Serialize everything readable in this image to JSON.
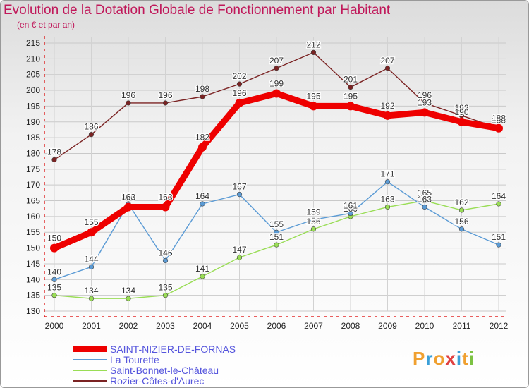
{
  "title": "Evolution de la Dotation Globale de Fonctionnement par Habitant",
  "subtitle": "(en € et par an)",
  "watermark": "Proxiti",
  "chart_data": {
    "type": "line",
    "title": "Evolution de la Dotation Globale de Fonctionnement par Habitant",
    "ylabel": "(en € et par an)",
    "xlabel": "",
    "x": [
      "2000",
      "2001",
      "2002",
      "2003",
      "2004",
      "2005",
      "2006",
      "2007",
      "2008",
      "2009",
      "2010",
      "2011",
      "2012"
    ],
    "ylim": [
      130,
      215
    ],
    "yticks": [
      130,
      135,
      140,
      145,
      150,
      155,
      160,
      165,
      170,
      175,
      180,
      185,
      190,
      195,
      200,
      205,
      210,
      215
    ],
    "grid": true,
    "legend_position": "bottom-left",
    "series": [
      {
        "name": "SAINT-NIZIER-DE-FORNAS",
        "color": "#ee0000",
        "values": [
          150,
          155,
          163,
          163,
          182,
          196,
          199,
          195,
          195,
          192,
          193,
          190,
          188
        ]
      },
      {
        "name": "La Tourette",
        "color": "#5b9bd5",
        "values": [
          140,
          144,
          164,
          146,
          164,
          167,
          155,
          159,
          161,
          171,
          163,
          156,
          151
        ]
      },
      {
        "name": "Saint-Bonnet-le-Château",
        "color": "#99dd55",
        "values": [
          135,
          134,
          134,
          135,
          141,
          147,
          151,
          156,
          160,
          163,
          165,
          162,
          164
        ]
      },
      {
        "name": "Rozier-Côtes-d'Aurec",
        "color": "#7b2323",
        "values": [
          178,
          186,
          196,
          196,
          198,
          202,
          207,
          212,
          201,
          207,
          196,
          192,
          188
        ]
      }
    ]
  }
}
